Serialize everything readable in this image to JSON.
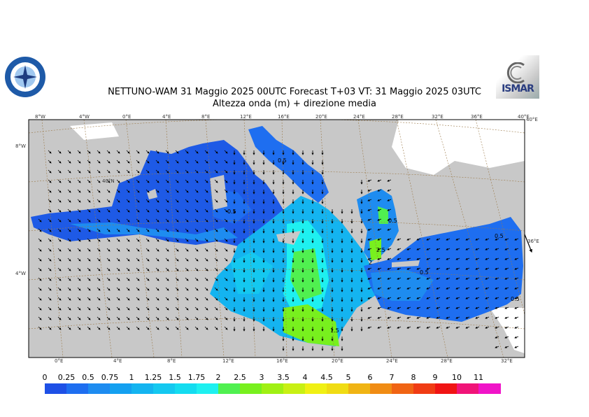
{
  "title_line1": "NETTUNO-WAM  31   Maggio  2025 00UTC Forecast T+03 VT: 31   Maggio  2025 03UTC",
  "title_line2": "Altezza onda (m) + direzione media",
  "logo_right_text": "ISMAR",
  "top_lon_labels": [
    "8°W",
    "4°W",
    "0°E",
    "4°E",
    "8°E",
    "12°E",
    "16°E",
    "20°E",
    "24°E",
    "28°E",
    "32°E",
    "36°E",
    "40°E"
  ],
  "bottom_lon_labels": [
    "0°E",
    "4°E",
    "8°E",
    "12°E",
    "16°E",
    "20°E",
    "24°E",
    "28°E",
    "32°E"
  ],
  "left_lat_labels": [
    "8°W",
    "40°N",
    "4°W"
  ],
  "right_lat_labels": [
    "40°E",
    "36°E"
  ],
  "contour_labels": [
    "0.5",
    "0.5",
    "0.5",
    "2",
    "2.5",
    "0.5",
    "1.5",
    "0.5",
    "0.5"
  ],
  "colorbar": {
    "labels": [
      "0",
      "0.25",
      "0.5",
      "0.75",
      "1",
      "1.25",
      "1.5",
      "1.75",
      "2",
      "2.5",
      "3",
      "3.5",
      "4",
      "4.5",
      "5",
      "6",
      "7",
      "8",
      "9",
      "10",
      "11"
    ],
    "colors": [
      "#1e50e6",
      "#1e6ef0",
      "#1e8cf0",
      "#14a0f0",
      "#14b4f0",
      "#14c8f0",
      "#14dcf0",
      "#1ef0f0",
      "#50f050",
      "#78f01e",
      "#a0f014",
      "#c8f014",
      "#f0f014",
      "#f0dc14",
      "#f0b414",
      "#f08c14",
      "#f06414",
      "#f03c14",
      "#f01414",
      "#f01478",
      "#f014c8"
    ]
  },
  "colors": {
    "land": "#c8c8c8",
    "snow": "#ffffff",
    "grid": "#9b7a4a"
  }
}
